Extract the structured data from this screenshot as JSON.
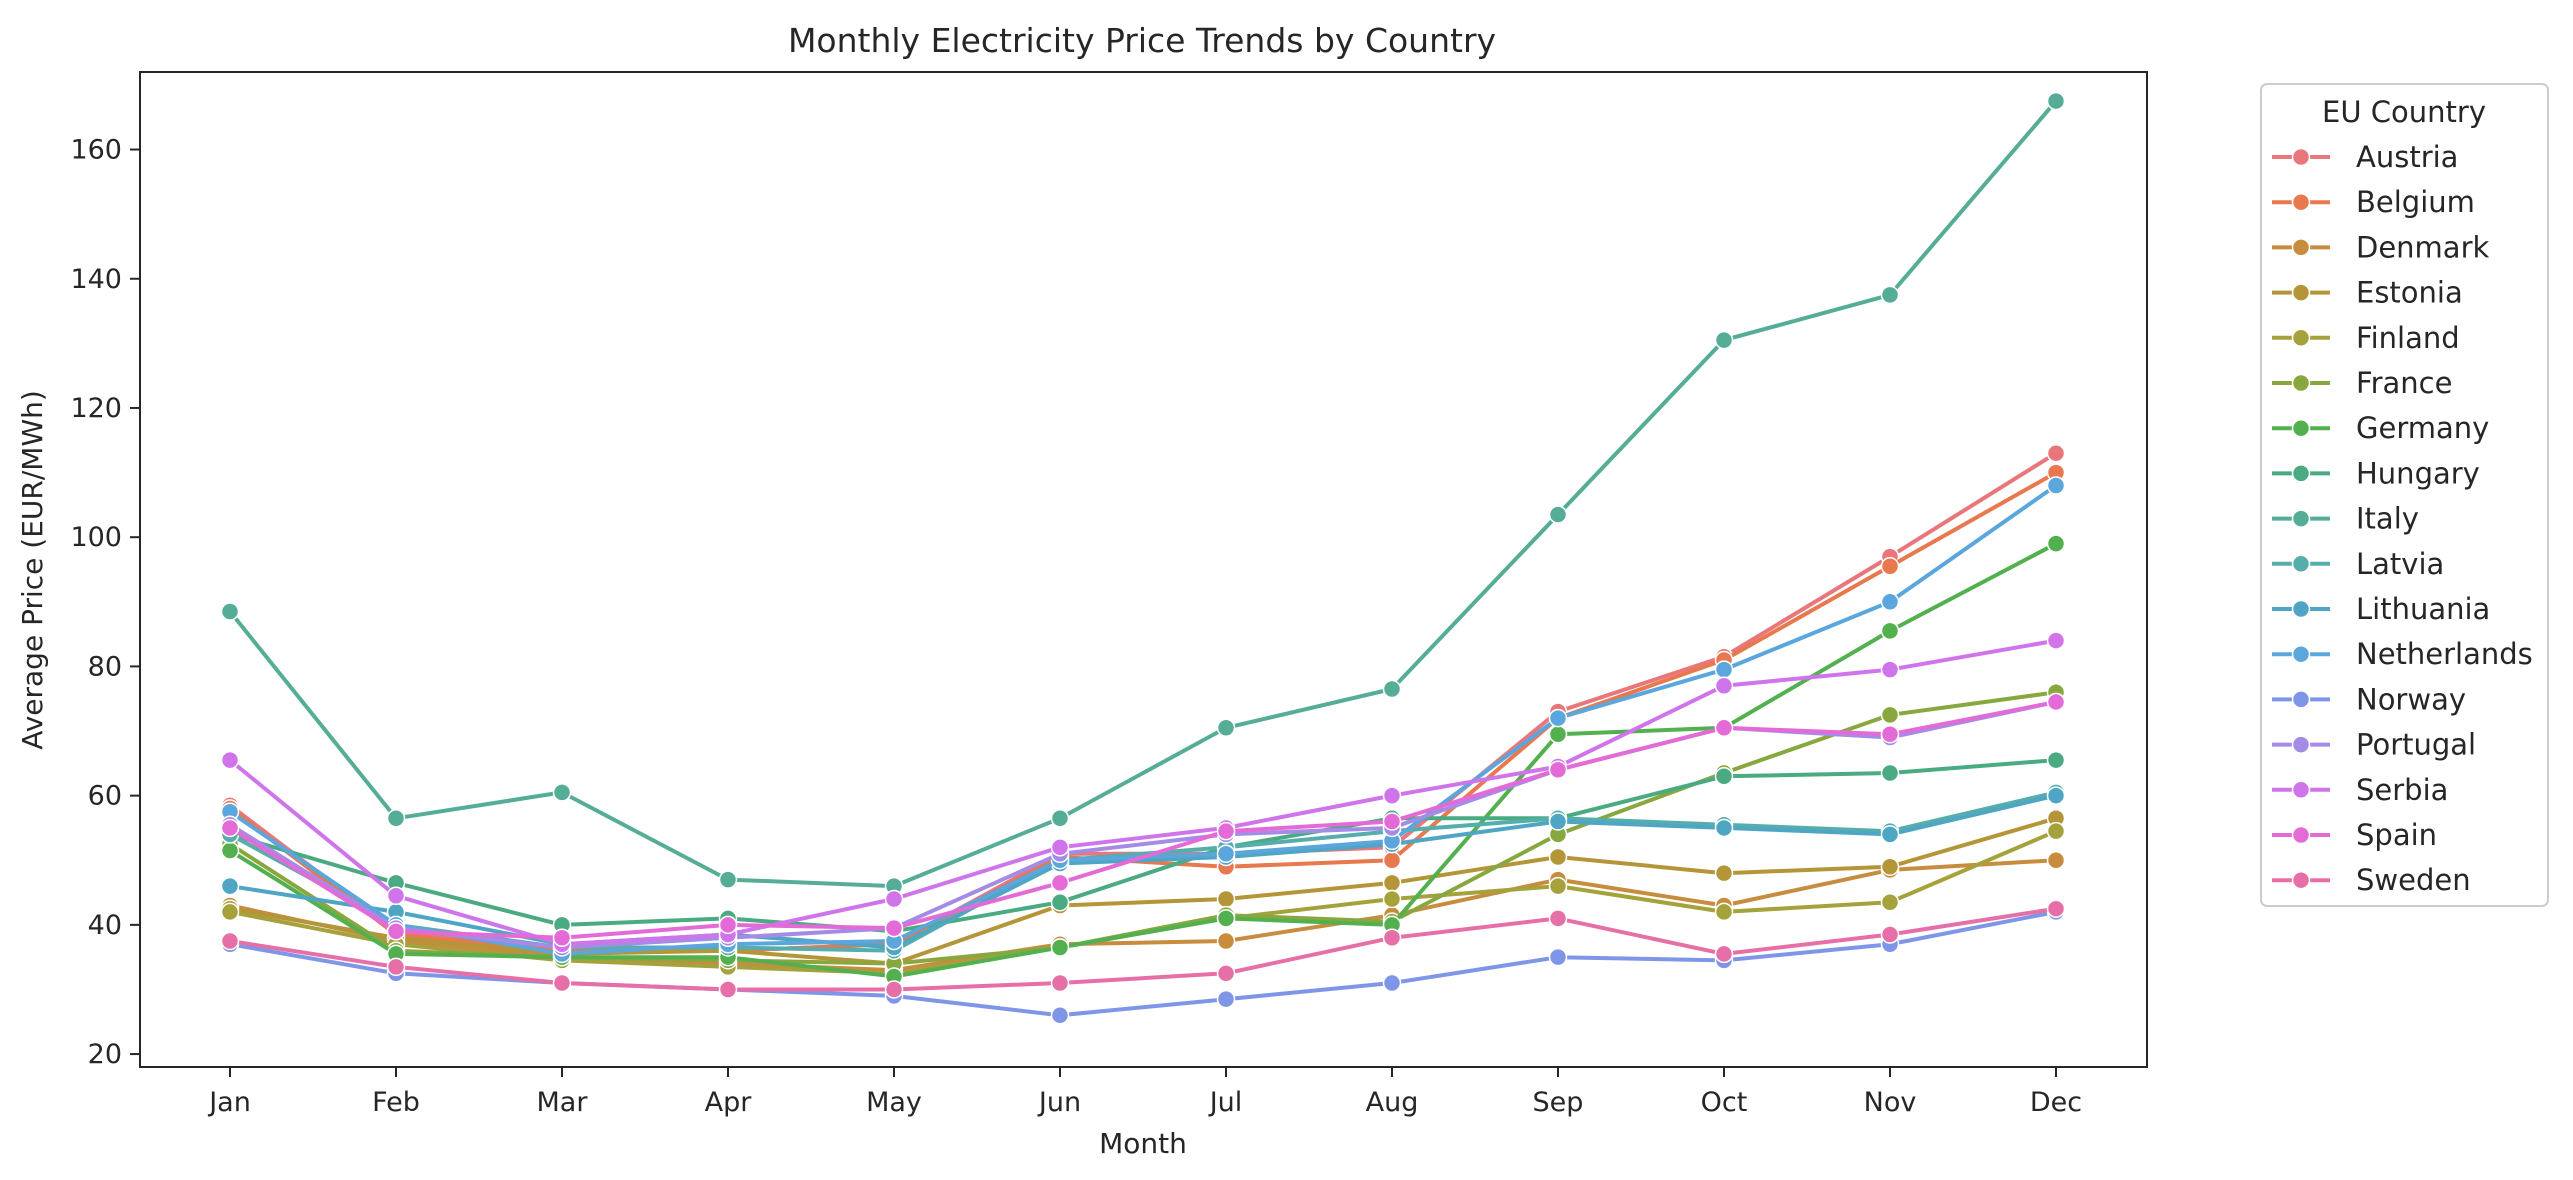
{
  "chart_data": {
    "type": "line",
    "title": "Monthly Electricity Price Trends by Country",
    "xlabel": "Month",
    "ylabel": "Average Price (EUR/MWh)",
    "categories": [
      "Jan",
      "Feb",
      "Mar",
      "Apr",
      "May",
      "Jun",
      "Jul",
      "Aug",
      "Sep",
      "Oct",
      "Nov",
      "Dec"
    ],
    "ylim": [
      18,
      172
    ],
    "yticks": [
      20,
      40,
      60,
      80,
      100,
      120,
      140,
      160
    ],
    "grid": false,
    "legend": {
      "title": "EU Country",
      "placement": "outside-right"
    },
    "series": [
      {
        "name": "Austria",
        "color": "#e8767b",
        "values": [
          58.5,
          39,
          36,
          36,
          37,
          51,
          51,
          52,
          73,
          81.5,
          97,
          113
        ]
      },
      {
        "name": "Belgium",
        "color": "#e8784e",
        "values": [
          58,
          38.5,
          36,
          36,
          37,
          50.5,
          49,
          50,
          72,
          81,
          95.5,
          110
        ]
      },
      {
        "name": "Denmark",
        "color": "#c88c3f",
        "values": [
          43,
          37.5,
          35,
          34,
          33,
          37,
          37.5,
          41.5,
          47,
          43,
          48.5,
          50
        ]
      },
      {
        "name": "Estonia",
        "color": "#b49638",
        "values": [
          42.5,
          38,
          35.5,
          36,
          34,
          43,
          44,
          46.5,
          50.5,
          48,
          49,
          56.5
        ]
      },
      {
        "name": "Finland",
        "color": "#a5a23c",
        "values": [
          42,
          37,
          34.5,
          33.5,
          32.5,
          36.5,
          41,
          44,
          46,
          42,
          43.5,
          54.5
        ]
      },
      {
        "name": "France",
        "color": "#88a83f",
        "values": [
          52.5,
          36,
          35,
          34.5,
          34,
          36.5,
          41.5,
          40.5,
          54,
          63.5,
          72.5,
          76
        ]
      },
      {
        "name": "Germany",
        "color": "#53b04f",
        "values": [
          51.5,
          35.5,
          35,
          35,
          32,
          36.5,
          41,
          40,
          69.5,
          70.5,
          85.5,
          99
        ]
      },
      {
        "name": "Hungary",
        "color": "#4aab82",
        "values": [
          54,
          46.5,
          40,
          41,
          39,
          43.5,
          52,
          56.5,
          56.5,
          63,
          63.5,
          65.5
        ]
      },
      {
        "name": "Italy",
        "color": "#55ad98",
        "values": [
          88.5,
          56.5,
          60.5,
          47,
          46,
          56.5,
          70.5,
          76.5,
          103.5,
          130.5,
          137.5,
          167.5
        ]
      },
      {
        "name": "Latvia",
        "color": "#55aeab",
        "values": [
          54,
          40,
          36.5,
          36.5,
          36,
          50,
          52,
          54.5,
          56.5,
          55.5,
          54.5,
          60.5
        ]
      },
      {
        "name": "Lithuania",
        "color": "#4fa6c4",
        "values": [
          46,
          42,
          37,
          38.5,
          36.5,
          49.5,
          50.5,
          52.5,
          56,
          55,
          54,
          60
        ]
      },
      {
        "name": "Netherlands",
        "color": "#5aa6dd",
        "values": [
          57.5,
          40,
          35.5,
          37,
          37.5,
          50,
          51,
          53,
          72,
          79.5,
          90,
          108
        ]
      },
      {
        "name": "Norway",
        "color": "#7f95e8",
        "values": [
          37,
          32.5,
          31,
          30,
          29,
          26,
          28.5,
          31,
          35,
          34.5,
          37,
          42
        ]
      },
      {
        "name": "Portugal",
        "color": "#a48be6",
        "values": [
          55.5,
          39.5,
          36.5,
          38,
          39.5,
          51,
          54,
          55,
          64,
          70.5,
          69,
          74.5
        ]
      },
      {
        "name": "Serbia",
        "color": "#cf74ea",
        "values": [
          65.5,
          44.5,
          37,
          38.5,
          44,
          52,
          55,
          60,
          64.5,
          77,
          79.5,
          84
        ]
      },
      {
        "name": "Spain",
        "color": "#e46ad8",
        "values": [
          55,
          39,
          38,
          40,
          39.5,
          46.5,
          54.5,
          56,
          64,
          70.5,
          69.5,
          74.5
        ]
      },
      {
        "name": "Sweden",
        "color": "#e76fa7",
        "values": [
          37.5,
          33.5,
          31,
          30,
          30,
          31,
          32.5,
          38,
          41,
          35.5,
          38.5,
          42.5
        ]
      }
    ]
  }
}
